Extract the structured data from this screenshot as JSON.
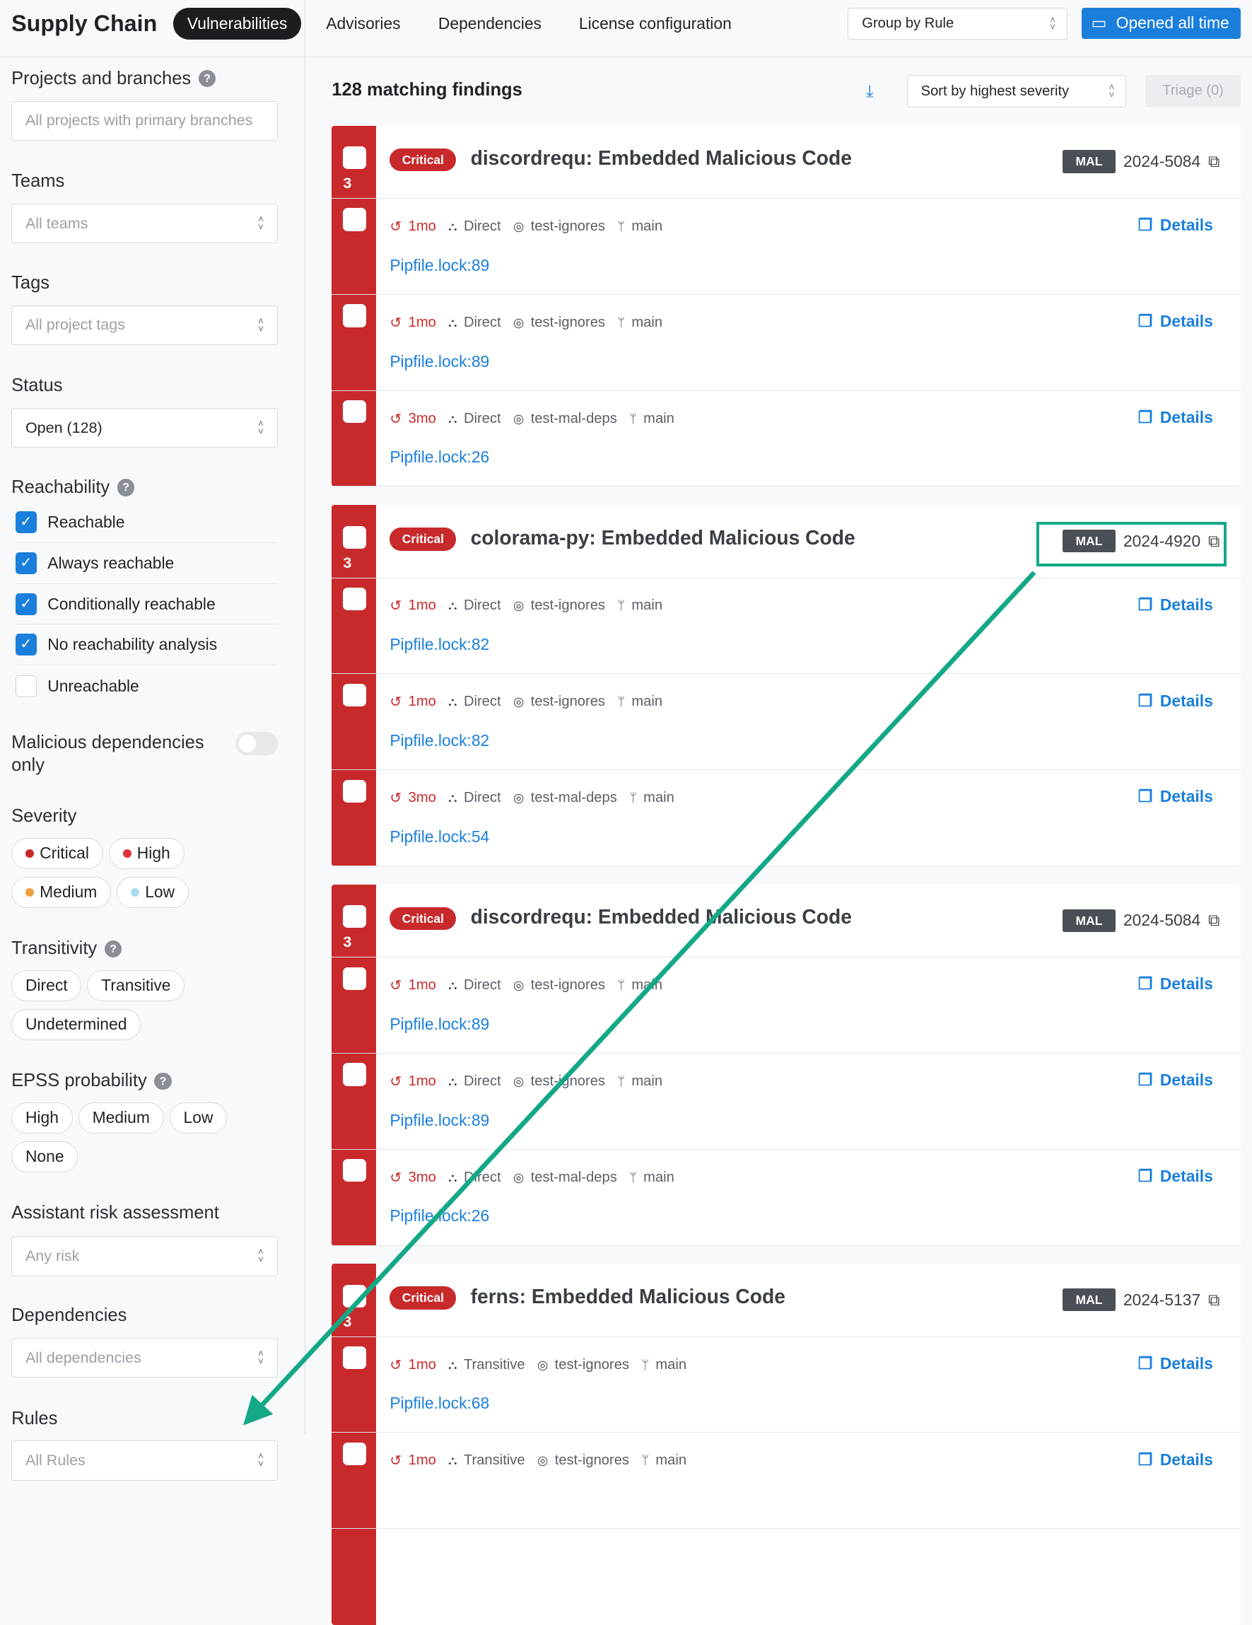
{
  "header": {
    "title": "Supply Chain",
    "tabs": [
      {
        "label": "Vulnerabilities",
        "active": true
      },
      {
        "label": "Advisories"
      },
      {
        "label": "Dependencies"
      },
      {
        "label": "License configuration"
      }
    ],
    "group_by": "Group by Rule",
    "date_button": "Opened all time"
  },
  "sidebar": {
    "projects": {
      "label": "Projects and branches",
      "placeholder": "All projects with primary branches"
    },
    "teams": {
      "label": "Teams",
      "placeholder": "All teams"
    },
    "tags": {
      "label": "Tags",
      "placeholder": "All project tags"
    },
    "status": {
      "label": "Status",
      "value": "Open (128)"
    },
    "reachability": {
      "label": "Reachability",
      "options": [
        {
          "label": "Reachable",
          "checked": true
        },
        {
          "label": "Always reachable",
          "checked": true
        },
        {
          "label": "Conditionally reachable",
          "checked": true
        },
        {
          "label": "No reachability analysis",
          "checked": true
        },
        {
          "label": "Unreachable",
          "checked": false
        }
      ]
    },
    "malicious": {
      "label": "Malicious dependencies only",
      "enabled": false
    },
    "severity": {
      "label": "Severity",
      "options": [
        {
          "label": "Critical",
          "color": "#c8292b"
        },
        {
          "label": "High",
          "color": "#e0323a"
        },
        {
          "label": "Medium",
          "color": "#f0a040"
        },
        {
          "label": "Low",
          "color": "#a8dcea"
        }
      ]
    },
    "transitivity": {
      "label": "Transitivity",
      "options": [
        "Direct",
        "Transitive",
        "Undetermined"
      ]
    },
    "epss": {
      "label": "EPSS probability",
      "options": [
        "High",
        "Medium",
        "Low",
        "None"
      ]
    },
    "risk": {
      "label": "Assistant risk assessment",
      "placeholder": "Any risk"
    },
    "dependencies": {
      "label": "Dependencies",
      "placeholder": "All dependencies"
    },
    "rules": {
      "label": "Rules",
      "placeholder": "All Rules"
    }
  },
  "main": {
    "count": "128 matching findings",
    "sort": "Sort by highest severity",
    "triage": "Triage (0)",
    "details_label": "Details",
    "groups": [
      {
        "severity": "Critical",
        "title": "discordrequ: Embedded Malicious Code",
        "badge": "MAL",
        "id": "2024-5084",
        "count": "3",
        "rows": [
          {
            "age": "1mo",
            "transitivity": "Direct",
            "repo": "test-ignores",
            "branch": "main",
            "file": "Pipfile.lock:89"
          },
          {
            "age": "1mo",
            "transitivity": "Direct",
            "repo": "test-ignores",
            "branch": "main",
            "file": "Pipfile.lock:89"
          },
          {
            "age": "3mo",
            "transitivity": "Direct",
            "repo": "test-mal-deps",
            "branch": "main",
            "file": "Pipfile.lock:26"
          }
        ]
      },
      {
        "severity": "Critical",
        "title": "colorama-py: Embedded Malicious Code",
        "badge": "MAL",
        "id": "2024-4920",
        "count": "3",
        "rows": [
          {
            "age": "1mo",
            "transitivity": "Direct",
            "repo": "test-ignores",
            "branch": "main",
            "file": "Pipfile.lock:82"
          },
          {
            "age": "1mo",
            "transitivity": "Direct",
            "repo": "test-ignores",
            "branch": "main",
            "file": "Pipfile.lock:82"
          },
          {
            "age": "3mo",
            "transitivity": "Direct",
            "repo": "test-mal-deps",
            "branch": "main",
            "file": "Pipfile.lock:54"
          }
        ]
      },
      {
        "severity": "Critical",
        "title": "discordrequ: Embedded Malicious Code",
        "badge": "MAL",
        "id": "2024-5084",
        "count": "3",
        "rows": [
          {
            "age": "1mo",
            "transitivity": "Direct",
            "repo": "test-ignores",
            "branch": "main",
            "file": "Pipfile.lock:89"
          },
          {
            "age": "1mo",
            "transitivity": "Direct",
            "repo": "test-ignores",
            "branch": "main",
            "file": "Pipfile.lock:89"
          },
          {
            "age": "3mo",
            "transitivity": "Direct",
            "repo": "test-mal-deps",
            "branch": "main",
            "file": "Pipfile.lock:26"
          }
        ]
      },
      {
        "severity": "Critical",
        "title": "ferns: Embedded Malicious Code",
        "badge": "MAL",
        "id": "2024-5137",
        "count": "3",
        "rows": [
          {
            "age": "1mo",
            "transitivity": "Transitive",
            "repo": "test-ignores",
            "branch": "main",
            "file": "Pipfile.lock:68"
          },
          {
            "age": "1mo",
            "transitivity": "Transitive",
            "repo": "test-ignores",
            "branch": "main",
            "file": ""
          }
        ]
      }
    ]
  },
  "annotation": {
    "color": "#14a886",
    "highlight": "MAL 2024-4920",
    "points_to": "Rules"
  }
}
